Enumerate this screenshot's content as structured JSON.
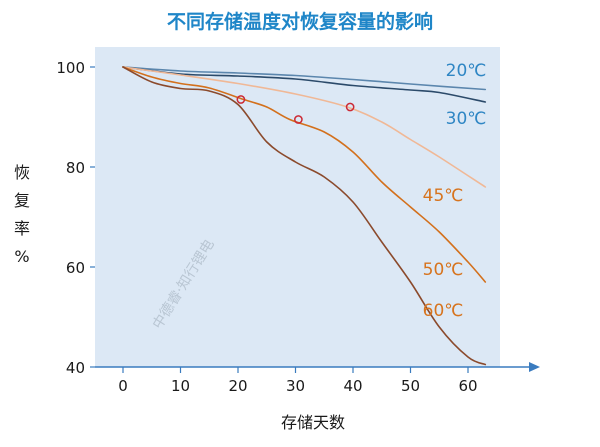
{
  "chart_data": {
    "type": "line",
    "title": "不同存储温度对恢复容量的影响",
    "xlabel": "存储天数",
    "ylabel": "恢复率%",
    "xlim": [
      -5,
      65
    ],
    "ylim": [
      40,
      103
    ],
    "xticks": [
      0,
      10,
      20,
      30,
      40,
      50,
      60
    ],
    "yticks": [
      40,
      60,
      80,
      100
    ],
    "grid": false,
    "legend": "inline labels at right end of each curve",
    "colors": {
      "title": "#1f86c8",
      "plot_bg": "#dce8f5",
      "axis": "#3a7bbf",
      "blue_label": "#2f86c4",
      "orange_label": "#d7741e"
    },
    "series": [
      {
        "name": "20℃",
        "color": "#5b86ad",
        "label_color": "#2f86c4",
        "x": [
          0,
          10,
          20,
          30,
          40,
          50,
          63
        ],
        "y": [
          100,
          99.2,
          98.8,
          98.3,
          97.5,
          96.6,
          95.5
        ]
      },
      {
        "name": "30℃",
        "color": "#2b4a6a",
        "label_color": "#2f86c4",
        "x": [
          0,
          10,
          20,
          30,
          40,
          50,
          55,
          63
        ],
        "y": [
          100,
          98.6,
          98.2,
          97.6,
          96.3,
          95.4,
          94.9,
          93
        ]
      },
      {
        "name": "45℃",
        "color": "#f0b896",
        "label_color": "#d7741e",
        "x": [
          0,
          10,
          20,
          30,
          39,
          45,
          50,
          55,
          63
        ],
        "y": [
          100,
          98.4,
          96.7,
          94.6,
          92,
          89,
          85.5,
          82,
          76
        ]
      },
      {
        "name": "50℃",
        "color": "#d3701c",
        "label_color": "#d7741e",
        "x": [
          0,
          5,
          10,
          15,
          21,
          25,
          29,
          35,
          40,
          45,
          50,
          55,
          60,
          63
        ],
        "y": [
          100,
          98,
          96.7,
          95.8,
          93.5,
          92,
          89.5,
          87,
          83,
          77,
          72,
          67,
          61,
          57
        ]
      },
      {
        "name": "60℃",
        "color": "#8b4a2c",
        "label_color": "#d7741e",
        "x": [
          0,
          5,
          10,
          15,
          20,
          25,
          30,
          35,
          40,
          45,
          50,
          55,
          60,
          63
        ],
        "y": [
          100,
          97,
          95.7,
          95.2,
          92.5,
          85,
          81,
          78,
          73,
          65,
          57,
          48,
          42,
          40.5
        ]
      }
    ],
    "markers": [
      {
        "x": 20.5,
        "y": 93.5,
        "color": "#cc2a35"
      },
      {
        "x": 30.5,
        "y": 89.5,
        "color": "#cc2a35"
      },
      {
        "x": 39.5,
        "y": 92,
        "color": "#cc2a35"
      }
    ]
  },
  "watermark": "中德睿·知行锂电"
}
